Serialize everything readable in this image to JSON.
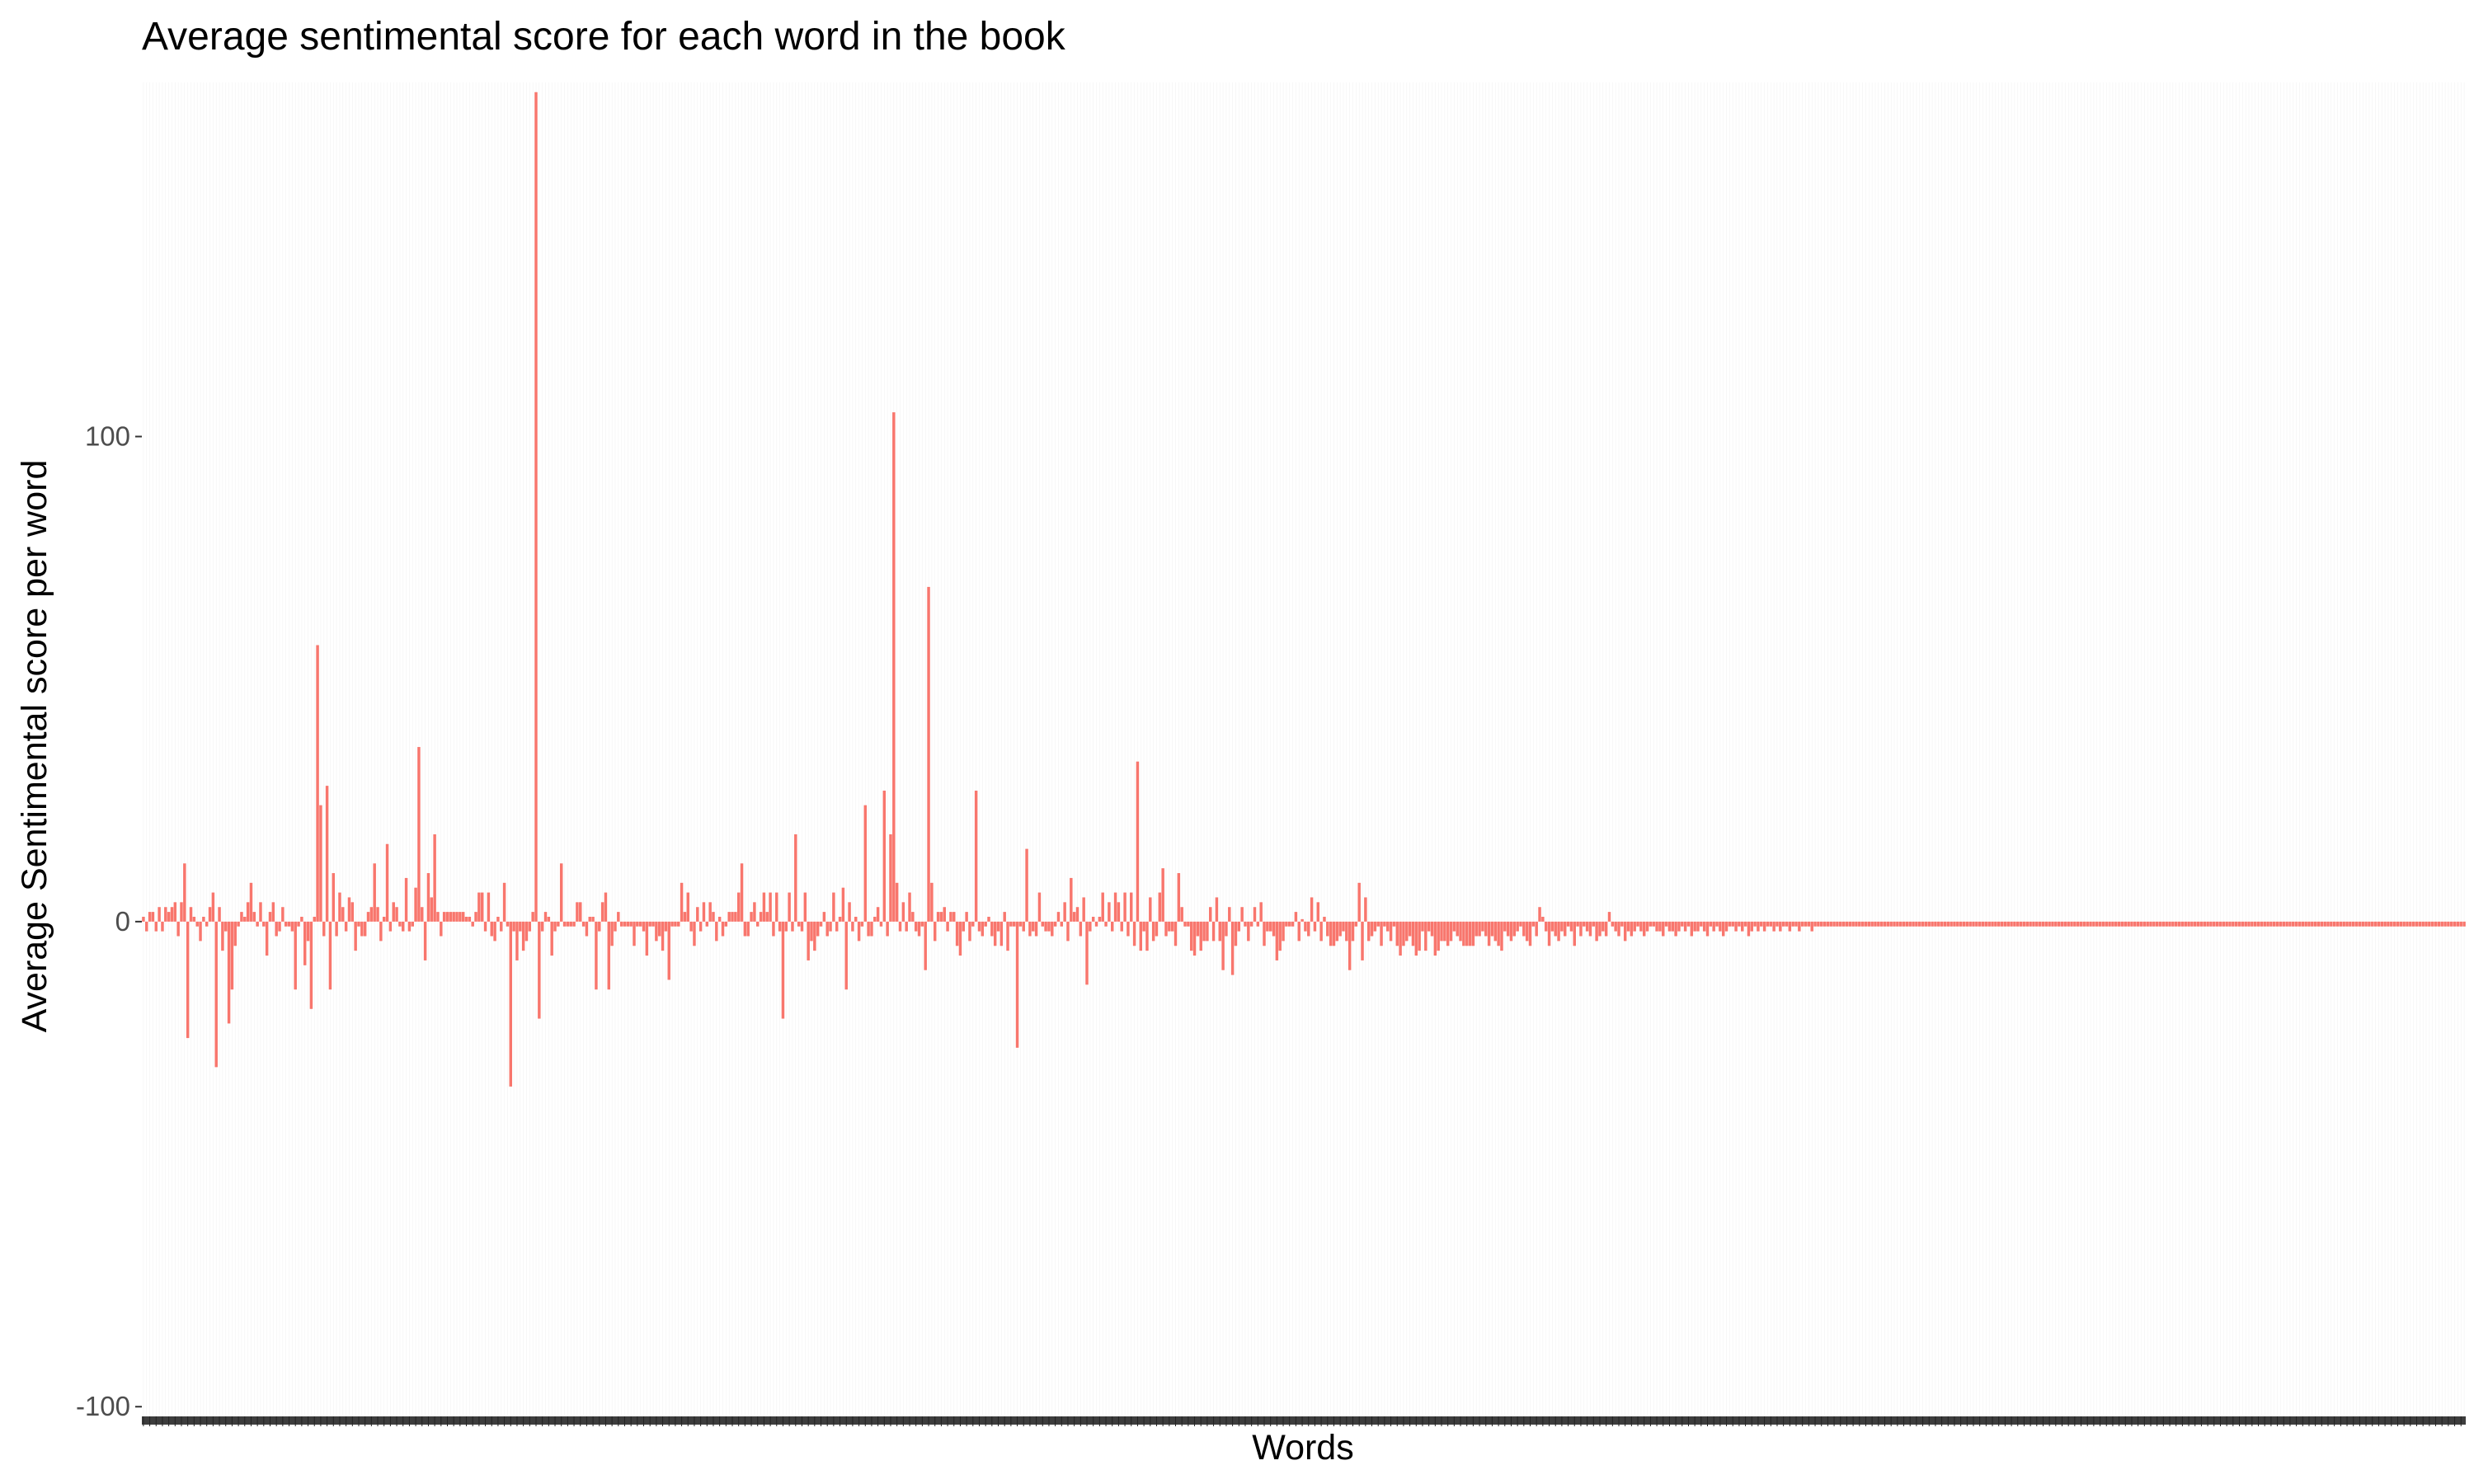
{
  "chart_data": {
    "type": "bar",
    "title": "Average sentimental score for each word in the book",
    "xlabel": "Words",
    "ylabel": "Average Sentimental score per word",
    "ylim": [
      -102,
      173
    ],
    "yticks": [
      {
        "value": -100,
        "label": "-100"
      },
      {
        "value": 0,
        "label": "0"
      },
      {
        "value": 100,
        "label": "100"
      }
    ],
    "bar_color": "#F8766D",
    "grid": "vertical per-category, very faint",
    "x_tick_labels": "one unreadable tick label per word (dense black band)",
    "categories_count": 700,
    "values": [
      1,
      -2,
      2,
      2,
      -2,
      3,
      -2,
      3,
      2,
      3,
      4,
      -3,
      4,
      12,
      -24,
      3,
      1,
      -1,
      -4,
      1,
      -1,
      3,
      6,
      -30,
      3,
      -6,
      -2,
      -21,
      -14,
      -5,
      -1,
      2,
      1,
      4,
      8,
      2,
      -1,
      4,
      -1,
      -7,
      2,
      4,
      -3,
      -2,
      3,
      -1,
      -1,
      -2,
      -14,
      -1,
      1,
      -9,
      -4,
      -18,
      1,
      57,
      24,
      -3,
      28,
      -14,
      10,
      -3,
      6,
      3,
      -2,
      5,
      4,
      -6,
      -1,
      -3,
      -3,
      2,
      3,
      12,
      3,
      -4,
      1,
      16,
      -2,
      4,
      3,
      -1,
      -2,
      9,
      -2,
      -1,
      7,
      36,
      3,
      -8,
      10,
      5,
      18,
      2,
      -3,
      2,
      2,
      2,
      2,
      2,
      2,
      2,
      1,
      1,
      -1,
      2,
      6,
      6,
      -2,
      6,
      -3,
      -4,
      1,
      -2,
      8,
      -1,
      -34,
      -2,
      -8,
      -2,
      -6,
      -4,
      -2,
      2,
      171,
      -20,
      -2,
      2,
      1,
      -7,
      -2,
      -1,
      12,
      -1,
      -1,
      -1,
      -1,
      4,
      4,
      -1,
      -3,
      1,
      1,
      -14,
      -2,
      4,
      6,
      -14,
      -5,
      -2,
      2,
      -1,
      -1,
      -1,
      -1,
      -5,
      -1,
      -1,
      -2,
      -7,
      -1,
      -1,
      -4,
      -3,
      -6,
      -2,
      -12,
      -1,
      -1,
      -1,
      8,
      2,
      6,
      -2,
      -5,
      3,
      -2,
      4,
      -1,
      4,
      2,
      -4,
      1,
      -3,
      -1,
      2,
      2,
      2,
      6,
      12,
      -3,
      -3,
      2,
      4,
      -1,
      2,
      6,
      2,
      6,
      -3,
      6,
      -2,
      -20,
      -2,
      6,
      -2,
      18,
      -1,
      -2,
      6,
      -8,
      -4,
      -6,
      -3,
      -1,
      2,
      -3,
      -2,
      6,
      -2,
      1,
      7,
      -14,
      4,
      -2,
      1,
      -4,
      -1,
      24,
      -3,
      -3,
      1,
      3,
      -1,
      27,
      -3,
      18,
      105,
      8,
      -2,
      4,
      -2,
      6,
      2,
      -2,
      -3,
      -1,
      -10,
      69,
      8,
      -4,
      2,
      2,
      3,
      -2,
      2,
      2,
      -5,
      -7,
      -2,
      2,
      -4,
      -1,
      27,
      -2,
      -3,
      -1,
      1,
      -3,
      -5,
      -2,
      -5,
      2,
      -6,
      -1,
      -1,
      -26,
      -1,
      -2,
      15,
      -3,
      -2,
      -3,
      6,
      -1,
      -2,
      -2,
      -3,
      -1,
      2,
      -1,
      4,
      -4,
      9,
      2,
      3,
      -3,
      5,
      -13,
      -2,
      1,
      -1,
      1,
      6,
      -1,
      4,
      -2,
      6,
      4,
      -2,
      6,
      -3,
      6,
      -5,
      33,
      -6,
      -2,
      -6,
      5,
      -4,
      -3,
      6,
      11,
      -3,
      -2,
      -2,
      -5,
      10,
      3,
      -1,
      -1,
      -6,
      -7,
      -3,
      -6,
      -4,
      -4,
      3,
      -4,
      5,
      -4,
      -10,
      -3,
      3,
      -11,
      -5,
      -2,
      3,
      -1,
      -4,
      -1,
      3,
      -1,
      4,
      -5,
      -2,
      -2,
      -3,
      -8,
      -6,
      -4,
      -1,
      -1,
      -1,
      2,
      -4,
      0,
      -2,
      -3,
      5,
      -2,
      4,
      -4,
      1,
      -3,
      -5,
      -5,
      -4,
      -3,
      -2,
      -4,
      -10,
      -4,
      -1,
      8,
      -8,
      5,
      -4,
      -3,
      -2,
      -1,
      -5,
      -1,
      -2,
      -4,
      -1,
      -5,
      -7,
      -5,
      -4,
      -3,
      -5,
      -7,
      -6,
      -2,
      -6,
      -2,
      -3,
      -7,
      -6,
      -4,
      -4,
      -5,
      -4,
      -2,
      -3,
      -4,
      -5,
      -5,
      -5,
      -5,
      -3,
      -3,
      -2,
      -3,
      -5,
      -3,
      -4,
      -5,
      -6,
      -2,
      -3,
      -4,
      -3,
      -2,
      -1,
      -3,
      -4,
      -5,
      -1,
      -3,
      3,
      1,
      -2,
      -5,
      -2,
      -3,
      -4,
      -2,
      -3,
      -1,
      -2,
      -5,
      -1,
      -3,
      -1,
      -2,
      -3,
      -1,
      -4,
      -3,
      -2,
      -3,
      2,
      -1,
      -2,
      -3,
      -1,
      -4,
      -2,
      -3,
      -2,
      -1,
      -2,
      -3,
      -2,
      -1,
      -1,
      -2,
      -2,
      -3,
      -1,
      -2,
      -2,
      -3,
      -2,
      -1,
      -2,
      -1,
      -3,
      -2,
      -2,
      -1,
      -2,
      -3,
      -1,
      -2,
      -1,
      -2,
      -3,
      -2,
      -1,
      -1,
      -2,
      -1,
      -2,
      -1,
      -3,
      -2,
      -1,
      -2,
      -1,
      -2,
      -1,
      -1,
      -2,
      -1,
      -2,
      -1,
      -1,
      -2,
      -1,
      -1,
      -2,
      -1,
      -1,
      -1,
      -2,
      -1,
      -1,
      -1,
      -1,
      -1,
      -1,
      -1,
      -1,
      -1,
      -1,
      -1,
      -1,
      -1,
      -1,
      -1,
      -1,
      -1,
      -1,
      -1,
      -1,
      -1,
      -1,
      -1,
      -1,
      -1,
      -1,
      -1,
      -1,
      -1,
      -1,
      -1,
      -1,
      -1,
      -1,
      -1,
      -1,
      -1,
      -1,
      -1,
      -1,
      -1,
      -1,
      -1,
      -1,
      -1,
      -1,
      -1,
      -1,
      -1,
      -1,
      -1,
      -1,
      -1,
      -1,
      -1,
      -1,
      -1,
      -1,
      -1,
      -1,
      -1,
      -1,
      -1,
      -1,
      -1,
      -1,
      -1,
      -1,
      -1,
      -1,
      -1,
      -1,
      -1,
      -1,
      -1,
      -1,
      -1,
      -1,
      -1,
      -1,
      -1,
      -1,
      -1,
      -1,
      -1,
      -1,
      -1,
      -1,
      -1,
      -1,
      -1,
      -1,
      -1,
      -1,
      -1,
      -1,
      -1,
      -1,
      -1,
      -1,
      -1,
      -1,
      -1,
      -1,
      -1,
      -1,
      -1,
      -1,
      -1,
      -1,
      -1,
      -1,
      -1,
      -1,
      -1,
      -1,
      -1,
      -1,
      -1,
      -1,
      -1,
      -1,
      -1,
      -1,
      -1,
      -1,
      -1,
      -1,
      -1,
      -1,
      -1,
      -1,
      -1,
      -1,
      -1,
      -1,
      -1,
      -1,
      -1,
      -1,
      -1,
      -1,
      -1,
      -1,
      -1,
      -1,
      -1,
      -1,
      -1,
      -1,
      -1,
      -1,
      -1,
      -1,
      -1,
      -1,
      -1,
      -1,
      -1,
      -1,
      -1,
      -1,
      -1,
      -1,
      -1,
      -1,
      -1,
      -1,
      -1,
      -1,
      -1,
      -1,
      -1,
      -1,
      -1,
      -1,
      -1,
      -1,
      -1,
      -1,
      -1,
      -1,
      -1,
      -1,
      -1,
      -1,
      -1,
      -1,
      -1,
      -1,
      -1,
      -1,
      -1,
      -1,
      -1,
      -1,
      -1,
      -1,
      -1,
      -1,
      -1,
      -1,
      -1,
      -1,
      -1,
      -1
    ]
  }
}
